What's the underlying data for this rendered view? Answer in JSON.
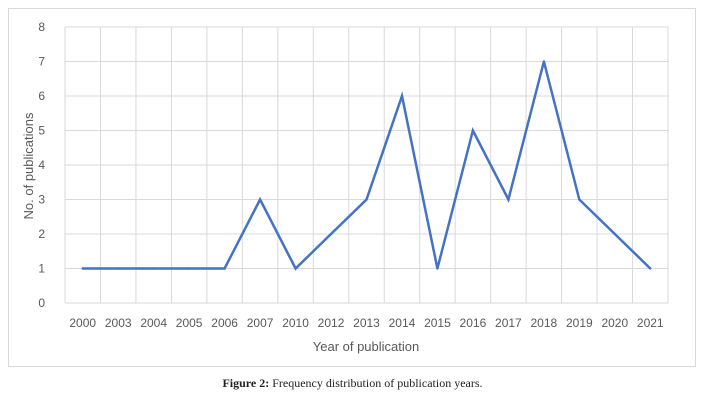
{
  "chart_data": {
    "type": "line",
    "categories": [
      "2000",
      "2003",
      "2004",
      "2005",
      "2006",
      "2007",
      "2010",
      "2012",
      "2013",
      "2014",
      "2015",
      "2016",
      "2017",
      "2018",
      "2019",
      "2020",
      "2021"
    ],
    "series": [
      {
        "values": [
          1,
          1,
          1,
          1,
          1,
          3,
          1,
          2,
          3,
          6,
          1,
          5,
          3,
          7,
          3,
          2,
          1
        ],
        "color": "#4472c4"
      }
    ],
    "xlabel": "Year of publication",
    "ylabel": "No. of publications",
    "ylim": [
      0,
      8
    ],
    "yticks": [
      0,
      1,
      2,
      3,
      4,
      5,
      6,
      7,
      8
    ],
    "grid": true,
    "legend": "none"
  },
  "caption": {
    "label": "Figure 2:",
    "text": " Frequency distribution of publication years."
  }
}
